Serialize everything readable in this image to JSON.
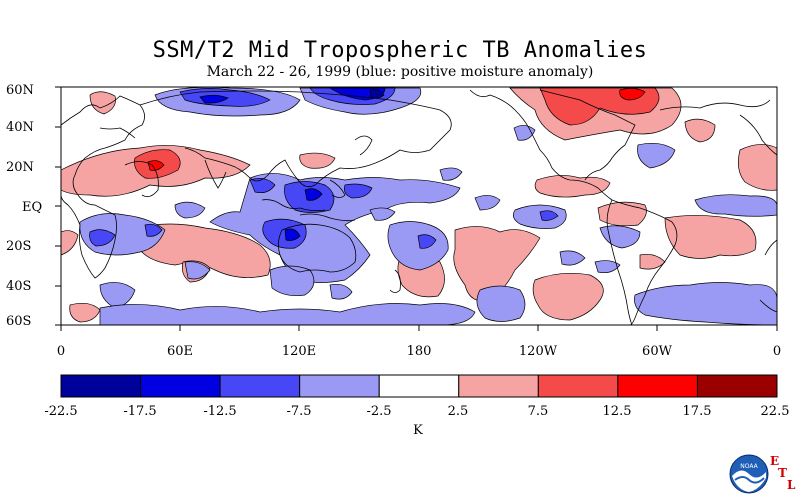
{
  "title": "SSM/T2 Mid Tropospheric TB Anomalies",
  "subtitle": "March 22 - 26, 1999 (blue: positive moisture anomaly)",
  "lat_labels": [
    "60N",
    "40N",
    "20N",
    "EQ",
    "20S",
    "40S",
    "60S"
  ],
  "lon_labels": [
    "0",
    "60E",
    "120E",
    "180",
    "120W",
    "60W",
    "0"
  ],
  "colorbar": {
    "colors": [
      "#00009a",
      "#0000e0",
      "#4747f5",
      "#9a9af5",
      "#ffffff",
      "#f5a3a3",
      "#f54a4a",
      "#ff0000",
      "#9a0000",
      ""
    ],
    "labels": [
      "-22.5",
      "-17.5",
      "-12.5",
      "-7.5",
      "-2.5",
      "2.5",
      "7.5",
      "12.5",
      "17.5",
      "22.5"
    ],
    "unit": "K"
  },
  "logo": {
    "text": "NOAA",
    "etl_letters": [
      "E",
      "T",
      "L"
    ]
  }
}
